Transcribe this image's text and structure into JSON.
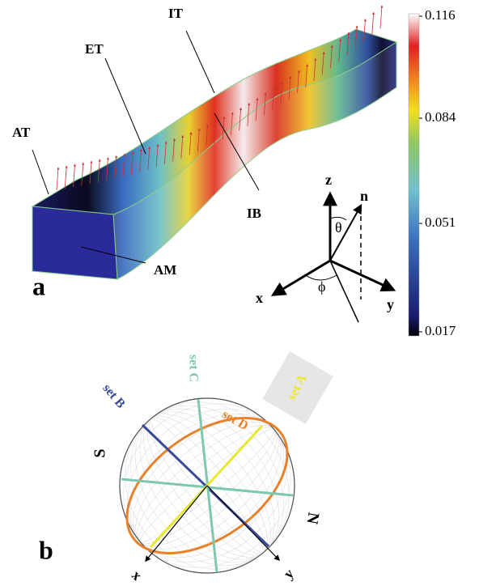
{
  "panel_a": {
    "label": "a",
    "beam_labels": [
      "AT",
      "ET",
      "IT",
      "IB",
      "AM"
    ],
    "axes": {
      "z": "z",
      "n": "n",
      "theta": "θ",
      "x": "x",
      "y": "y",
      "phi": "ϕ"
    }
  },
  "colorbar": {
    "ticks": [
      0.116,
      0.084,
      0.051,
      0.017
    ]
  },
  "panel_b": {
    "label": "b",
    "sets": [
      "set A",
      "set B",
      "set C",
      "set D"
    ],
    "directions": [
      "S",
      "N"
    ],
    "axes": [
      "x",
      "y"
    ]
  }
}
